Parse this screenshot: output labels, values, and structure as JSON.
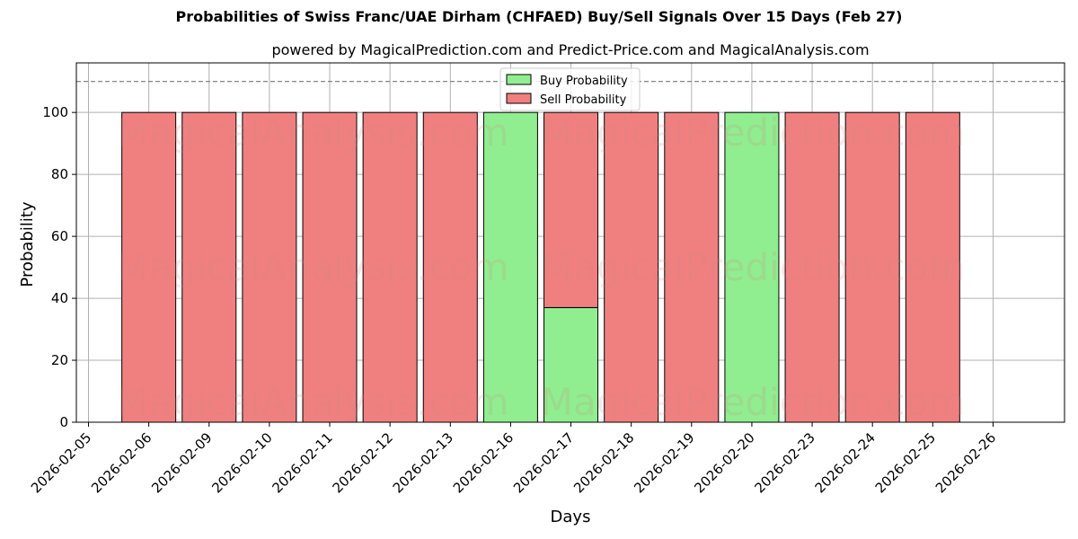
{
  "chart_data": {
    "type": "bar",
    "stacked": true,
    "title": "Probabilities of Swiss Franc/UAE Dirham (CHFAED) Buy/Sell Signals Over 15 Days (Feb 27)",
    "subtitle": "powered by MagicalPrediction.com and Predict-Price.com and MagicalAnalysis.com",
    "xlabel": "Days",
    "ylabel": "Probability",
    "ylim": [
      0,
      116
    ],
    "yticks": [
      0,
      20,
      40,
      60,
      80,
      100
    ],
    "threshold_line": 110,
    "grid": true,
    "legend_position": "top-center",
    "tick_labels": [
      "2026-02-05",
      "2026-02-06",
      "2026-02-09",
      "2026-02-10",
      "2026-02-11",
      "2026-02-12",
      "2026-02-13",
      "2026-02-16",
      "2026-02-17",
      "2026-02-18",
      "2026-02-19",
      "2026-02-20",
      "2026-02-23",
      "2026-02-24",
      "2026-02-25",
      "2026-02-26"
    ],
    "categories": [
      "2026-02-06",
      "2026-02-10",
      "2026-02-11",
      "2026-02-12",
      "2026-02-13",
      "2026-02-16",
      "2026-02-17",
      "2026-02-18",
      "2026-02-19",
      "2026-02-20",
      "2026-02-23",
      "2026-02-24",
      "2026-02-25",
      "2026-02-26"
    ],
    "series": [
      {
        "name": "Buy Probability",
        "color": "#90ee90",
        "values": [
          0,
          0,
          0,
          0,
          0,
          0,
          100,
          37,
          0,
          0,
          100,
          0,
          0,
          0
        ]
      },
      {
        "name": "Sell Probability",
        "color": "#f08080",
        "values": [
          100,
          100,
          100,
          100,
          100,
          100,
          0,
          63,
          100,
          100,
          0,
          100,
          100,
          100
        ]
      }
    ],
    "watermarks": [
      "MagicalAnalysis.com",
      "MagicalPrediction.com"
    ]
  }
}
